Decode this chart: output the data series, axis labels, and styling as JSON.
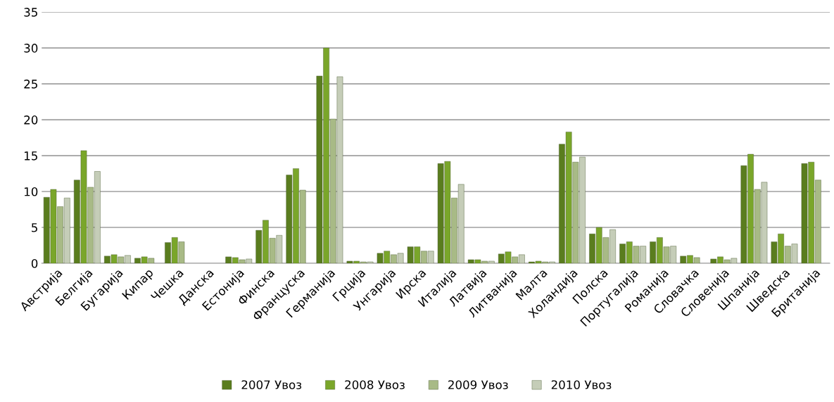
{
  "chart_data": {
    "type": "bar",
    "categories": [
      "Австрија",
      "Белгија",
      "Бугарија",
      "Кипар",
      "Чешка",
      "Данска",
      "Естонија",
      "Финска",
      "Француска",
      "Германија",
      "Грција",
      "Унгарија",
      "Ирска",
      "Италија",
      "Латвија",
      "Литванија",
      "Малта",
      "Холандија",
      "Полска",
      "Португалија",
      "Романија",
      "Словачка",
      "Словенија",
      "Шпанија",
      "Шведска",
      "Британија"
    ],
    "series": [
      {
        "name": "2007 Увоз",
        "color": "#5a7d1e",
        "values": [
          9.2,
          11.6,
          1.0,
          0.7,
          2.9,
          null,
          0.9,
          4.6,
          12.3,
          26.1,
          0.3,
          1.4,
          2.3,
          13.9,
          0.5,
          1.3,
          0.2,
          16.6,
          4.1,
          2.7,
          3.0,
          1.0,
          0.6,
          13.6,
          3.0,
          13.9
        ]
      },
      {
        "name": "2008 Увоз",
        "color": "#7aa62a",
        "values": [
          10.3,
          15.7,
          1.2,
          0.9,
          3.6,
          null,
          0.8,
          6.0,
          13.2,
          30.0,
          0.3,
          1.7,
          2.3,
          14.2,
          0.5,
          1.6,
          0.3,
          18.3,
          5.0,
          3.0,
          3.6,
          1.1,
          0.9,
          15.2,
          4.1,
          14.1
        ]
      },
      {
        "name": "2009 Увоз",
        "color": "#a8ba86",
        "values": [
          7.9,
          10.6,
          0.9,
          0.7,
          3.0,
          null,
          0.5,
          3.5,
          10.2,
          20.1,
          0.2,
          1.2,
          1.7,
          9.1,
          0.3,
          0.9,
          0.2,
          14.1,
          3.6,
          2.4,
          2.3,
          0.8,
          0.5,
          10.3,
          2.4,
          11.6
        ]
      },
      {
        "name": "2010 Увоз",
        "color": "#c5cdb8",
        "values": [
          9.1,
          12.8,
          1.1,
          null,
          null,
          null,
          0.6,
          3.9,
          null,
          26.0,
          0.2,
          1.4,
          1.7,
          11.0,
          0.3,
          1.2,
          0.2,
          14.8,
          4.7,
          2.4,
          2.4,
          null,
          0.7,
          11.3,
          2.7,
          null
        ]
      }
    ],
    "ylim": [
      0,
      35
    ],
    "yticks": [
      0,
      5,
      10,
      15,
      20,
      25,
      30,
      35
    ],
    "grid": "y",
    "legend": "bottom"
  }
}
